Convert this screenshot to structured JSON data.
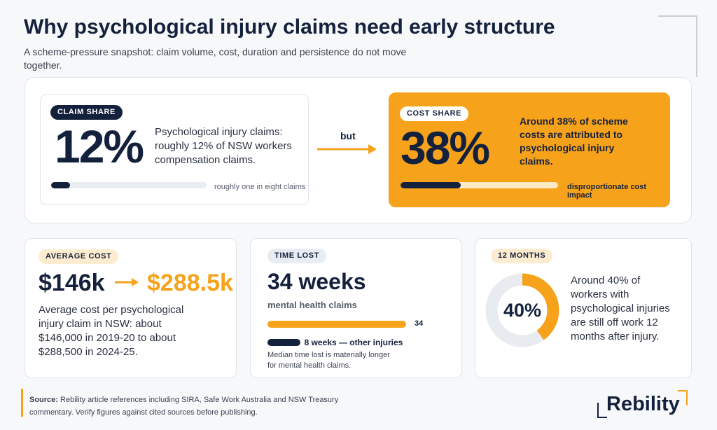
{
  "header": {
    "title": "Why psychological injury claims need early structure",
    "subtitle": "A scheme-pressure snapshot: claim volume, cost, duration and persistence do not move together."
  },
  "claim_share": {
    "tag": "CLAIM SHARE",
    "value": 12,
    "value_label": "12%",
    "xlim": [
      0,
      100
    ],
    "description": "Psychological injury claims: roughly 12% of NSW workers compensation claims.",
    "bar_note": "roughly one in eight claims"
  },
  "connector": "but",
  "cost_share": {
    "tag": "COST SHARE",
    "value": 38,
    "value_label": "38%",
    "xlim": [
      0,
      100
    ],
    "description": "Around 38% of scheme costs are attributed to psychological injury claims.",
    "bar_note": "disproportionate cost impact"
  },
  "average_cost": {
    "tag": "AVERAGE COST",
    "from": "$146k",
    "to": "$288.5k",
    "description": "Average cost per psychological injury claim in NSW: about $146,000 in 2019-20 to about $288,500 in 2024-25."
  },
  "time_lost": {
    "tag": "TIME LOST",
    "headline": "34 weeks",
    "subhead": "mental health claims",
    "bars": [
      {
        "value": 34
      },
      {
        "value": 8,
        "label": "8 weeks — other injuries"
      }
    ],
    "note": "Median time lost is materially longer for mental health claims."
  },
  "twelve_months": {
    "tag": "12 MONTHS",
    "value": 40,
    "value_label": "40%",
    "xlim": [
      0,
      100
    ],
    "description": "Around 40% of workers with psychological injuries are still off work 12 months after injury."
  },
  "footer": {
    "source_label": "Source:",
    "source_text": "Rebility article references including SIRA, Safe Work Australia and NSW Treasury commentary. Verify figures against cited sources before publishing.",
    "logo": "Rebility"
  }
}
